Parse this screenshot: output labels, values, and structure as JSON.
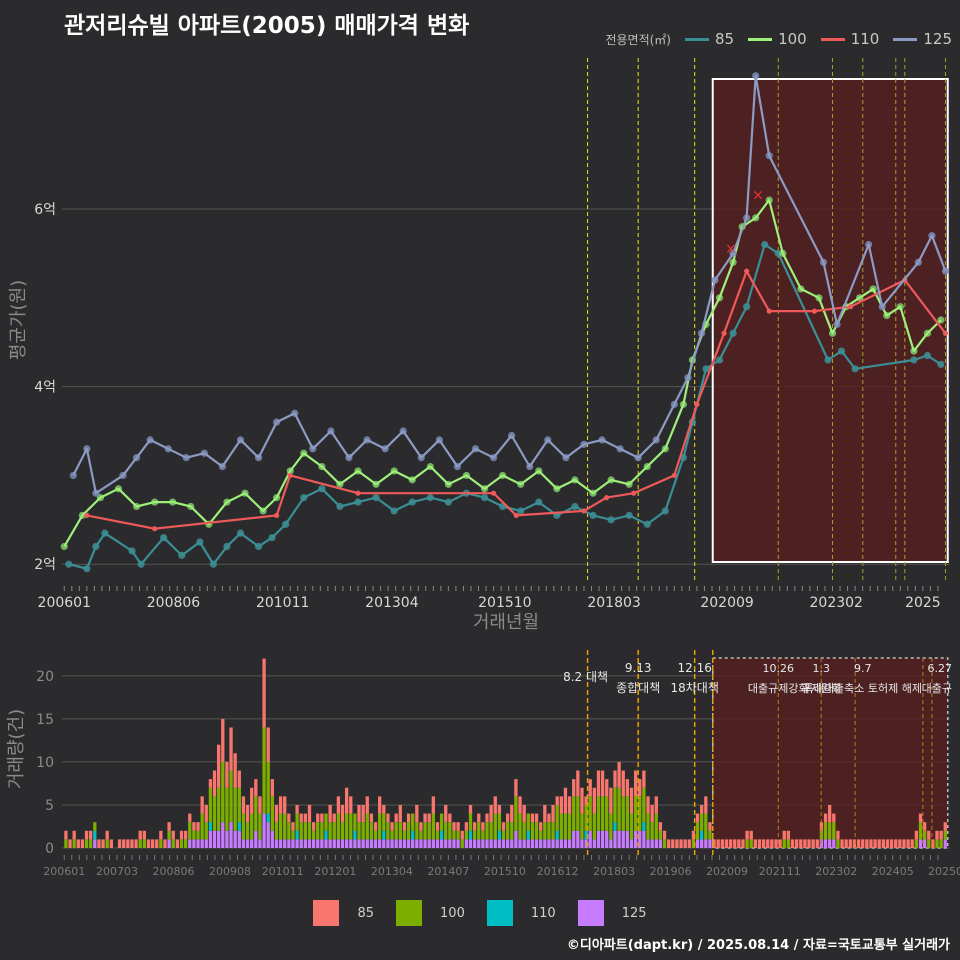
{
  "title": "관저리슈빌 아파트(2005) 매매가격 변화",
  "legend_top_title": "전용면적(㎡)",
  "footer": "©디아파트(dapt.kr) / 2025.08.14 / 자료=국토교통부 실거래가",
  "colors": {
    "85": "#f8766d",
    "100": "#7cae00",
    "110": "#00bfc4",
    "125": "#c77cff",
    "line85": "#3a8f97",
    "line100": "#9ef07a",
    "line110": "#ee5a5a",
    "line125": "#8d9bc4"
  },
  "chart_data": [
    {
      "type": "line",
      "name": "price",
      "xlabel": "거래년월",
      "ylabel": "평균가(원)",
      "ylim": [
        1.8,
        7.7
      ],
      "y_ticks": [
        {
          "v": 2,
          "label": "2억"
        },
        {
          "v": 4,
          "label": "4억"
        },
        {
          "v": 6,
          "label": "6억"
        }
      ],
      "x_ticks": [
        {
          "t": 2006.0,
          "label": "200601"
        },
        {
          "t": 2008.417,
          "label": "200806"
        },
        {
          "t": 2010.833,
          "label": "201011"
        },
        {
          "t": 2013.25,
          "label": "201304"
        },
        {
          "t": 2015.75,
          "label": "201510"
        },
        {
          "t": 2018.167,
          "label": "201803"
        },
        {
          "t": 2020.667,
          "label": "202009"
        },
        {
          "t": 2023.083,
          "label": "202302"
        },
        {
          "t": 2025.0,
          "label": "2025"
        }
      ],
      "vlines": [
        2017.58,
        2018.7,
        2019.95
      ],
      "vlines_zone": [
        2021.8,
        2023.0,
        2023.67,
        2024.4,
        2024.6,
        2025.5
      ],
      "highlight": {
        "from": 2020.35,
        "to": 2025.55
      },
      "series": [
        {
          "name": "85",
          "points": [
            [
              2006.1,
              2.0
            ],
            [
              2006.5,
              1.95
            ],
            [
              2006.7,
              2.2
            ],
            [
              2006.9,
              2.35
            ],
            [
              2007.5,
              2.15
            ],
            [
              2007.7,
              2.0
            ],
            [
              2008.2,
              2.3
            ],
            [
              2008.6,
              2.1
            ],
            [
              2009.0,
              2.25
            ],
            [
              2009.3,
              2.0
            ],
            [
              2009.6,
              2.2
            ],
            [
              2009.9,
              2.35
            ],
            [
              2010.3,
              2.2
            ],
            [
              2010.6,
              2.3
            ],
            [
              2010.9,
              2.45
            ],
            [
              2011.3,
              2.75
            ],
            [
              2011.7,
              2.85
            ],
            [
              2012.1,
              2.65
            ],
            [
              2012.5,
              2.7
            ],
            [
              2012.9,
              2.75
            ],
            [
              2013.3,
              2.6
            ],
            [
              2013.7,
              2.7
            ],
            [
              2014.1,
              2.75
            ],
            [
              2014.5,
              2.7
            ],
            [
              2014.9,
              2.8
            ],
            [
              2015.3,
              2.75
            ],
            [
              2015.7,
              2.65
            ],
            [
              2016.1,
              2.6
            ],
            [
              2016.5,
              2.7
            ],
            [
              2016.9,
              2.55
            ],
            [
              2017.3,
              2.65
            ],
            [
              2017.7,
              2.55
            ],
            [
              2018.1,
              2.5
            ],
            [
              2018.5,
              2.55
            ],
            [
              2018.9,
              2.45
            ],
            [
              2019.3,
              2.6
            ],
            [
              2019.7,
              3.2
            ],
            [
              2019.9,
              3.6
            ],
            [
              2020.2,
              4.2
            ],
            [
              2020.5,
              4.3
            ],
            [
              2020.8,
              4.6
            ],
            [
              2021.1,
              4.9
            ],
            [
              2021.5,
              5.6
            ],
            [
              2021.8,
              5.5
            ],
            [
              2022.9,
              4.3
            ],
            [
              2023.2,
              4.4
            ],
            [
              2023.5,
              4.2
            ],
            [
              2024.8,
              4.3
            ],
            [
              2025.1,
              4.35
            ],
            [
              2025.4,
              4.25
            ]
          ]
        },
        {
          "name": "100",
          "points": [
            [
              2006.0,
              2.2
            ],
            [
              2006.4,
              2.55
            ],
            [
              2006.8,
              2.75
            ],
            [
              2007.2,
              2.85
            ],
            [
              2007.6,
              2.65
            ],
            [
              2008.0,
              2.7
            ],
            [
              2008.4,
              2.7
            ],
            [
              2008.8,
              2.65
            ],
            [
              2009.2,
              2.45
            ],
            [
              2009.6,
              2.7
            ],
            [
              2010.0,
              2.8
            ],
            [
              2010.4,
              2.6
            ],
            [
              2010.7,
              2.75
            ],
            [
              2011.0,
              3.05
            ],
            [
              2011.3,
              3.25
            ],
            [
              2011.7,
              3.1
            ],
            [
              2012.1,
              2.9
            ],
            [
              2012.5,
              3.05
            ],
            [
              2012.9,
              2.9
            ],
            [
              2013.3,
              3.05
            ],
            [
              2013.7,
              2.95
            ],
            [
              2014.1,
              3.1
            ],
            [
              2014.5,
              2.9
            ],
            [
              2014.9,
              3.0
            ],
            [
              2015.3,
              2.85
            ],
            [
              2015.7,
              3.0
            ],
            [
              2016.1,
              2.9
            ],
            [
              2016.5,
              3.05
            ],
            [
              2016.9,
              2.85
            ],
            [
              2017.3,
              2.95
            ],
            [
              2017.7,
              2.8
            ],
            [
              2018.1,
              2.95
            ],
            [
              2018.5,
              2.9
            ],
            [
              2018.9,
              3.1
            ],
            [
              2019.3,
              3.3
            ],
            [
              2019.7,
              3.8
            ],
            [
              2019.9,
              4.3
            ],
            [
              2020.2,
              4.7
            ],
            [
              2020.5,
              5.0
            ],
            [
              2020.8,
              5.4
            ],
            [
              2021.0,
              5.8
            ],
            [
              2021.3,
              5.9
            ],
            [
              2021.6,
              6.1
            ],
            [
              2021.9,
              5.5
            ],
            [
              2022.3,
              5.1
            ],
            [
              2022.7,
              5.0
            ],
            [
              2023.0,
              4.6
            ],
            [
              2023.3,
              4.9
            ],
            [
              2023.6,
              5.0
            ],
            [
              2023.9,
              5.1
            ],
            [
              2024.2,
              4.8
            ],
            [
              2024.5,
              4.9
            ],
            [
              2024.8,
              4.4
            ],
            [
              2025.1,
              4.6
            ],
            [
              2025.4,
              4.75
            ]
          ]
        },
        {
          "name": "110",
          "points": [
            [
              2006.5,
              2.55
            ],
            [
              2008.0,
              2.4
            ],
            [
              2010.7,
              2.55
            ],
            [
              2011.0,
              3.0
            ],
            [
              2012.5,
              2.8
            ],
            [
              2015.5,
              2.8
            ],
            [
              2016.0,
              2.55
            ],
            [
              2017.5,
              2.6
            ],
            [
              2018.0,
              2.75
            ],
            [
              2018.6,
              2.8
            ],
            [
              2019.5,
              3.0
            ],
            [
              2020.0,
              3.8
            ],
            [
              2020.6,
              4.6
            ],
            [
              2021.1,
              5.3
            ],
            [
              2021.6,
              4.85
            ],
            [
              2022.6,
              4.85
            ],
            [
              2023.4,
              4.9
            ],
            [
              2024.6,
              5.2
            ],
            [
              2025.5,
              4.6
            ]
          ]
        },
        {
          "name": "125",
          "points": [
            [
              2006.2,
              3.0
            ],
            [
              2006.5,
              3.3
            ],
            [
              2006.7,
              2.8
            ],
            [
              2007.3,
              3.0
            ],
            [
              2007.6,
              3.2
            ],
            [
              2007.9,
              3.4
            ],
            [
              2008.3,
              3.3
            ],
            [
              2008.7,
              3.2
            ],
            [
              2009.1,
              3.25
            ],
            [
              2009.5,
              3.1
            ],
            [
              2009.9,
              3.4
            ],
            [
              2010.3,
              3.2
            ],
            [
              2010.7,
              3.6
            ],
            [
              2011.1,
              3.7
            ],
            [
              2011.5,
              3.3
            ],
            [
              2011.9,
              3.5
            ],
            [
              2012.3,
              3.2
            ],
            [
              2012.7,
              3.4
            ],
            [
              2013.1,
              3.3
            ],
            [
              2013.5,
              3.5
            ],
            [
              2013.9,
              3.2
            ],
            [
              2014.3,
              3.4
            ],
            [
              2014.7,
              3.1
            ],
            [
              2015.1,
              3.3
            ],
            [
              2015.5,
              3.2
            ],
            [
              2015.9,
              3.45
            ],
            [
              2016.3,
              3.1
            ],
            [
              2016.7,
              3.4
            ],
            [
              2017.1,
              3.2
            ],
            [
              2017.5,
              3.35
            ],
            [
              2017.9,
              3.4
            ],
            [
              2018.3,
              3.3
            ],
            [
              2018.7,
              3.2
            ],
            [
              2019.1,
              3.4
            ],
            [
              2019.5,
              3.8
            ],
            [
              2019.8,
              4.1
            ],
            [
              2020.1,
              4.6
            ],
            [
              2020.4,
              5.2
            ],
            [
              2020.8,
              5.5
            ],
            [
              2021.1,
              5.9
            ],
            [
              2021.3,
              7.5
            ],
            [
              2021.6,
              6.6
            ],
            [
              2022.8,
              5.4
            ],
            [
              2023.1,
              4.7
            ],
            [
              2023.8,
              5.6
            ],
            [
              2024.1,
              4.9
            ],
            [
              2024.9,
              5.4
            ],
            [
              2025.2,
              5.7
            ],
            [
              2025.5,
              5.3
            ]
          ]
        }
      ],
      "markers_x": [
        [
          2020.75,
          5.55
        ],
        [
          2021.35,
          6.15
        ]
      ]
    },
    {
      "type": "bar",
      "name": "volume",
      "ylabel": "거래량(건)",
      "ylim": [
        0,
        23
      ],
      "y_ticks": [
        0,
        5,
        10,
        15,
        20
      ],
      "x_ticks": [
        {
          "t": 2006.0,
          "label": "200601"
        },
        {
          "t": 2007.167,
          "label": "200703"
        },
        {
          "t": 2008.417,
          "label": "200806"
        },
        {
          "t": 2009.667,
          "label": "200908"
        },
        {
          "t": 2010.833,
          "label": "201011"
        },
        {
          "t": 2012.0,
          "label": "201201"
        },
        {
          "t": 2013.25,
          "label": "201304"
        },
        {
          "t": 2014.5,
          "label": "201407"
        },
        {
          "t": 2015.75,
          "label": "201510"
        },
        {
          "t": 2016.917,
          "label": "201612"
        },
        {
          "t": 2018.167,
          "label": "201803"
        },
        {
          "t": 2019.417,
          "label": "201906"
        },
        {
          "t": 2020.667,
          "label": "202009"
        },
        {
          "t": 2021.833,
          "label": "202111"
        },
        {
          "t": 2023.083,
          "label": "202302"
        },
        {
          "t": 2024.333,
          "label": "202405"
        },
        {
          "t": 2025.5,
          "label": "20250"
        }
      ],
      "vlines": [
        2017.58,
        2018.7,
        2019.95,
        2020.35
      ],
      "vlines_zone": [
        2021.8,
        2022.75,
        2023.5,
        2025.0,
        2025.2
      ],
      "highlight": {
        "from": 2020.35,
        "to": 2025.55
      },
      "annotations": [
        {
          "t": 2017.58,
          "line1": "8.2 대책",
          "line2": ""
        },
        {
          "t": 2018.7,
          "line1": "9.13",
          "line2": "종합대책"
        },
        {
          "t": 2019.95,
          "line1": "12.16",
          "line2": "18차대책"
        },
        {
          "t": 2021.8,
          "line1": "10.26",
          "line2": "대출규제강화"
        },
        {
          "t": 2022.75,
          "line1": "1.3",
          "line2": "규제완화"
        },
        {
          "t": 2023.67,
          "line1": "9.7",
          "line2": "특례대출축소 토허제 해제"
        },
        {
          "t": 2025.2,
          "line1": "6.27",
          "line2": "대출규"
        }
      ],
      "monthly_totals": [
        2,
        1,
        2,
        1,
        1,
        2,
        2,
        3,
        1,
        1,
        2,
        1,
        0,
        1,
        1,
        1,
        1,
        1,
        2,
        2,
        1,
        1,
        1,
        2,
        1,
        3,
        2,
        1,
        2,
        2,
        4,
        3,
        3,
        6,
        5,
        8,
        9,
        12,
        15,
        10,
        14,
        11,
        9,
        6,
        5,
        7,
        8,
        6,
        22,
        14,
        8,
        5,
        6,
        6,
        4,
        3,
        5,
        4,
        4,
        5,
        3,
        4,
        4,
        4,
        5,
        4,
        6,
        5,
        7,
        6,
        4,
        5,
        5,
        6,
        4,
        3,
        6,
        5,
        4,
        3,
        4,
        5,
        3,
        4,
        4,
        5,
        3,
        4,
        4,
        6,
        3,
        4,
        5,
        4,
        3,
        3,
        2,
        3,
        5,
        3,
        4,
        3,
        4,
        5,
        6,
        5,
        3,
        4,
        5,
        8,
        6,
        5,
        4,
        4,
        4,
        3,
        5,
        4,
        5,
        6,
        6,
        7,
        6,
        8,
        9,
        7,
        6,
        8,
        7,
        9,
        9,
        8,
        7,
        9,
        10,
        9,
        8,
        7,
        9,
        8,
        9,
        6,
        5,
        6,
        3,
        2,
        1,
        1,
        1,
        1,
        1,
        1,
        2,
        4,
        5,
        6,
        3,
        1,
        1,
        1,
        1,
        1,
        1,
        1,
        1,
        2,
        2,
        1,
        1,
        1,
        1,
        1,
        1,
        1,
        2,
        2,
        1,
        1,
        1,
        1,
        1,
        1,
        1,
        3,
        4,
        5,
        4,
        2,
        1,
        1,
        1,
        1,
        1,
        1,
        1,
        1,
        1,
        1,
        1,
        1,
        1,
        1,
        1,
        1,
        1,
        1,
        2,
        4,
        3,
        2,
        1,
        2,
        2,
        3
      ]
    }
  ],
  "legend_bottom": [
    "85",
    "100",
    "110",
    "125"
  ]
}
